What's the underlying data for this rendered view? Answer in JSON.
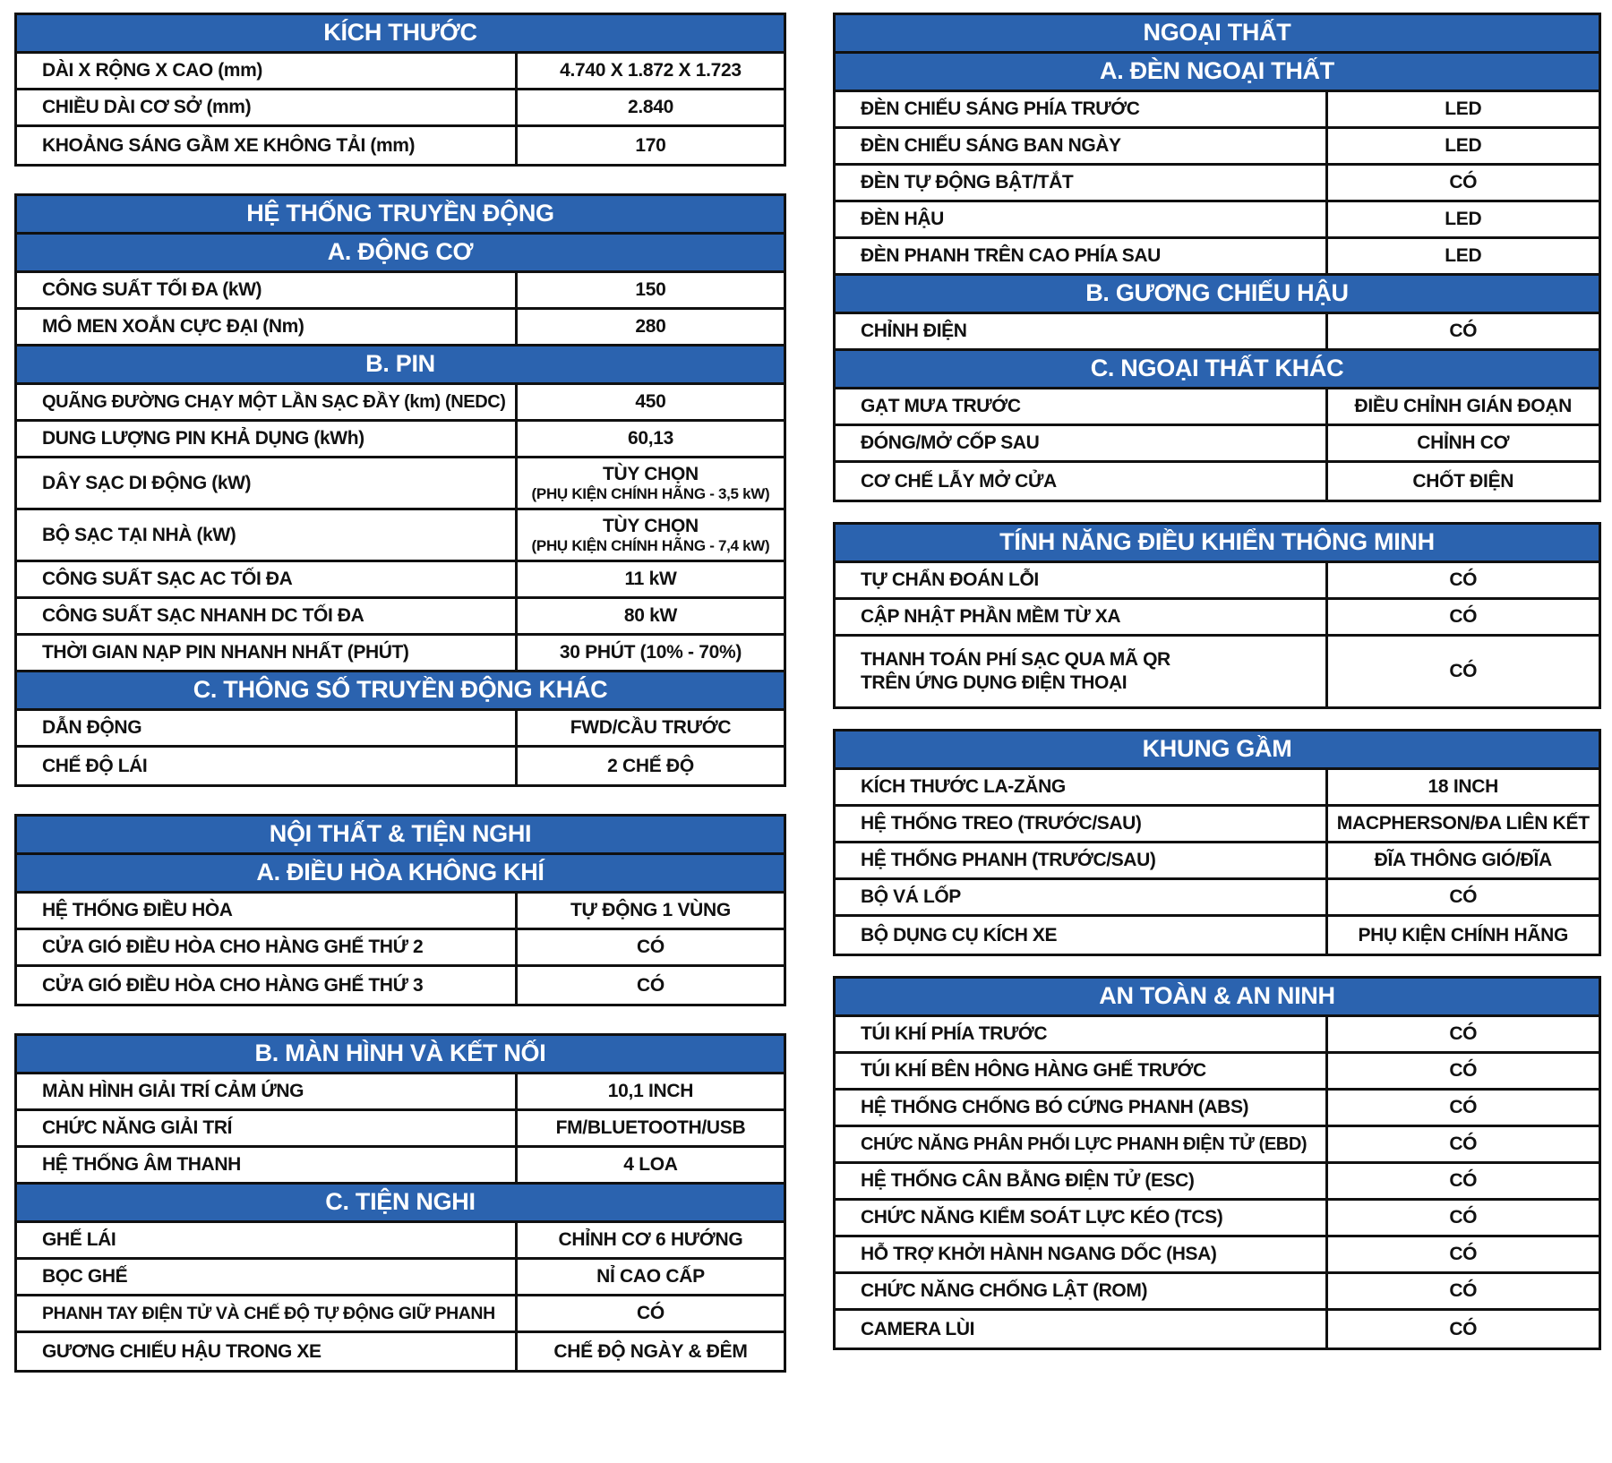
{
  "document_title": "Bảng thông số kỹ thuật xe điện",
  "yes_label": "CÓ",
  "colors": {
    "header_background": "#2b63af",
    "header_text": "#ffffff",
    "border": "#101010",
    "body_text": "#111111",
    "page_background": "#ffffff"
  },
  "columns": [
    {
      "id": "left",
      "tables": [
        {
          "id": "kich-thuoc",
          "blocks": [
            {
              "header": "KÍCH THƯỚC"
            },
            {
              "label": "DÀI X RỘNG X CAO (mm)",
              "value": "4.740 X 1.872 X 1.723"
            },
            {
              "label": "CHIỀU DÀI CƠ SỞ (mm)",
              "value": "2.840"
            },
            {
              "label": "KHOẢNG SÁNG GẦM XE KHÔNG TẢI (mm)",
              "value": "170"
            }
          ]
        },
        {
          "id": "he-thong-truyen-dong",
          "blocks": [
            {
              "header": "HỆ THỐNG TRUYỀN ĐỘNG"
            },
            {
              "header": "A. ĐỘNG CƠ"
            },
            {
              "label": "CÔNG SUẤT TỐI ĐA (kW)",
              "value": "150"
            },
            {
              "label": "MÔ MEN XOẮN CỰC ĐẠI (Nm)",
              "value": "280"
            },
            {
              "header": "B. PIN"
            },
            {
              "label": "QUÃNG ĐƯỜNG CHẠY MỘT LẦN SẠC ĐẦY (km) (NEDC)",
              "value": "450"
            },
            {
              "label": "DUNG LƯỢNG PIN KHẢ DỤNG (kWh)",
              "value": "60,13"
            },
            {
              "label": "DÂY SẠC DI ĐỘNG (kW)",
              "value": "TÙY CHỌN",
              "value_note": "(PHỤ KIỆN CHÍNH HÃNG - 3,5 kW)"
            },
            {
              "label": "BỘ SẠC TẠI NHÀ (kW)",
              "value": "TÙY CHỌN",
              "value_note": "(PHỤ KIỆN CHÍNH HÃNG - 7,4 kW)"
            },
            {
              "label": "CÔNG SUẤT SẠC AC TỐI ĐA",
              "value": "11 kW"
            },
            {
              "label": "CÔNG SUẤT SẠC NHANH DC TỐI ĐA",
              "value": "80 kW"
            },
            {
              "label": "THỜI GIAN NẠP PIN NHANH NHẤT (PHÚT)",
              "value": "30 PHÚT (10% - 70%)"
            },
            {
              "header": "C. THÔNG SỐ TRUYỀN ĐỘNG KHÁC"
            },
            {
              "label": "DẪN ĐỘNG",
              "value": "FWD/CẦU TRƯỚC"
            },
            {
              "label": "CHẾ ĐỘ LÁI",
              "value": "2 CHẾ ĐỘ"
            }
          ]
        },
        {
          "id": "noi-that-tien-nghi",
          "blocks": [
            {
              "header": "NỘI THẤT & TIỆN NGHI"
            },
            {
              "header": "A. ĐIỀU HÒA KHÔNG KHÍ"
            },
            {
              "label": "HỆ THỐNG ĐIỀU HÒA",
              "value": "TỰ ĐỘNG 1 VÙNG"
            },
            {
              "label": "CỬA GIÓ ĐIỀU HÒA CHO HÀNG GHẾ THỨ 2",
              "value": "CÓ"
            },
            {
              "label": "CỬA GIÓ ĐIỀU HÒA CHO HÀNG GHẾ THỨ 3",
              "value": "CÓ"
            }
          ]
        },
        {
          "id": "man-hinh-ket-noi",
          "blocks": [
            {
              "header": "B. MÀN HÌNH VÀ KẾT NỐI"
            },
            {
              "label": "MÀN HÌNH GIẢI TRÍ CẢM ỨNG",
              "value": "10,1 INCH"
            },
            {
              "label": "CHỨC NĂNG GIẢI TRÍ",
              "value": "FM/BLUETOOTH/USB"
            },
            {
              "label": "HỆ THỐNG ÂM THANH",
              "value": "4 LOA"
            },
            {
              "header": "C. TIỆN NGHI"
            },
            {
              "label": "GHẾ LÁI",
              "value": "CHỈNH CƠ 6 HƯỚNG"
            },
            {
              "label": "BỌC GHẾ",
              "value": "NỈ CAO CẤP"
            },
            {
              "label": "PHANH TAY ĐIỆN TỬ VÀ CHẾ ĐỘ TỰ ĐỘNG GIỮ PHANH",
              "value": "CÓ"
            },
            {
              "label": "GƯƠNG CHIẾU HẬU TRONG XE",
              "value": "CHẾ ĐỘ NGÀY & ĐÊM"
            }
          ]
        }
      ]
    },
    {
      "id": "right",
      "tables": [
        {
          "id": "ngoai-that",
          "blocks": [
            {
              "header": "NGOẠI THẤT"
            },
            {
              "header": "A. ĐÈN NGOẠI THẤT"
            },
            {
              "label": "ĐÈN CHIẾU SÁNG PHÍA TRƯỚC",
              "value": "LED"
            },
            {
              "label": "ĐÈN CHIẾU SÁNG BAN NGÀY",
              "value": "LED"
            },
            {
              "label": "ĐÈN TỰ ĐỘNG BẬT/TẮT",
              "value": "CÓ"
            },
            {
              "label": "ĐÈN HẬU",
              "value": "LED"
            },
            {
              "label": "ĐÈN PHANH TRÊN CAO PHÍA SAU",
              "value": "LED"
            },
            {
              "header": "B. GƯƠNG CHIẾU HẬU"
            },
            {
              "label": "CHỈNH ĐIỆN",
              "value": "CÓ"
            },
            {
              "header": "C. NGOẠI THẤT KHÁC"
            },
            {
              "label": "GẠT MƯA TRƯỚC",
              "value": "ĐIỀU CHỈNH GIÁN ĐOẠN"
            },
            {
              "label": "ĐÓNG/MỞ CỐP SAU",
              "value": "CHỈNH CƠ"
            },
            {
              "label": "CƠ CHẾ LẪY MỞ CỬA",
              "value": "CHỐT ĐIỆN"
            }
          ]
        },
        {
          "id": "tinh-nang-dieu-khien-thong-minh",
          "blocks": [
            {
              "header": "TÍNH NĂNG ĐIỀU KHIỂN THÔNG MINH"
            },
            {
              "label": "TỰ CHẨN ĐOÁN LỖI",
              "value": "CÓ"
            },
            {
              "label": "CẬP NHẬT PHẦN MỀM TỪ XA",
              "value": "CÓ"
            },
            {
              "label": "THANH TOÁN PHÍ SẠC QUA MÃ QR\nTRÊN ỨNG DỤNG ĐIỆN THOẠI",
              "value": "CÓ"
            }
          ]
        },
        {
          "id": "khung-gam",
          "blocks": [
            {
              "header": "KHUNG GẦM"
            },
            {
              "label": "KÍCH THƯỚC LA-ZĂNG",
              "value": "18 INCH"
            },
            {
              "label": "HỆ THỐNG TREO (TRƯỚC/SAU)",
              "value": "MACPHERSON/ĐA LIÊN KẾT"
            },
            {
              "label": "HỆ THỐNG PHANH (TRƯỚC/SAU)",
              "value": "ĐĨA THÔNG GIÓ/ĐĨA"
            },
            {
              "label": "BỘ VÁ LỐP",
              "value": "CÓ"
            },
            {
              "label": "BỘ DỤNG CỤ KÍCH XE",
              "value": "PHỤ KIỆN CHÍNH HÃNG"
            }
          ]
        },
        {
          "id": "an-toan-an-ninh",
          "blocks": [
            {
              "header": "AN TOÀN & AN NINH"
            },
            {
              "label": "TÚI KHÍ PHÍA TRƯỚC",
              "value": "CÓ"
            },
            {
              "label": "TÚI KHÍ BÊN HÔNG HÀNG GHẾ TRƯỚC",
              "value": "CÓ"
            },
            {
              "label": "HỆ THỐNG CHỐNG BÓ CỨNG PHANH (ABS)",
              "value": "CÓ"
            },
            {
              "label": "CHỨC NĂNG PHÂN PHỐI LỰC PHANH ĐIỆN TỬ (EBD)",
              "value": "CÓ"
            },
            {
              "label": "HỆ THỐNG CÂN BẰNG ĐIỆN TỬ (ESC)",
              "value": "CÓ"
            },
            {
              "label": "CHỨC NĂNG KIỂM SOÁT LỰC KÉO (TCS)",
              "value": "CÓ"
            },
            {
              "label": "HỖ TRỢ KHỞI HÀNH NGANG DỐC (HSA)",
              "value": "CÓ"
            },
            {
              "label": "CHỨC NĂNG CHỐNG LẬT (ROM)",
              "value": "CÓ"
            },
            {
              "label": "CAMERA LÙI",
              "value": "CÓ"
            }
          ]
        }
      ]
    }
  ]
}
